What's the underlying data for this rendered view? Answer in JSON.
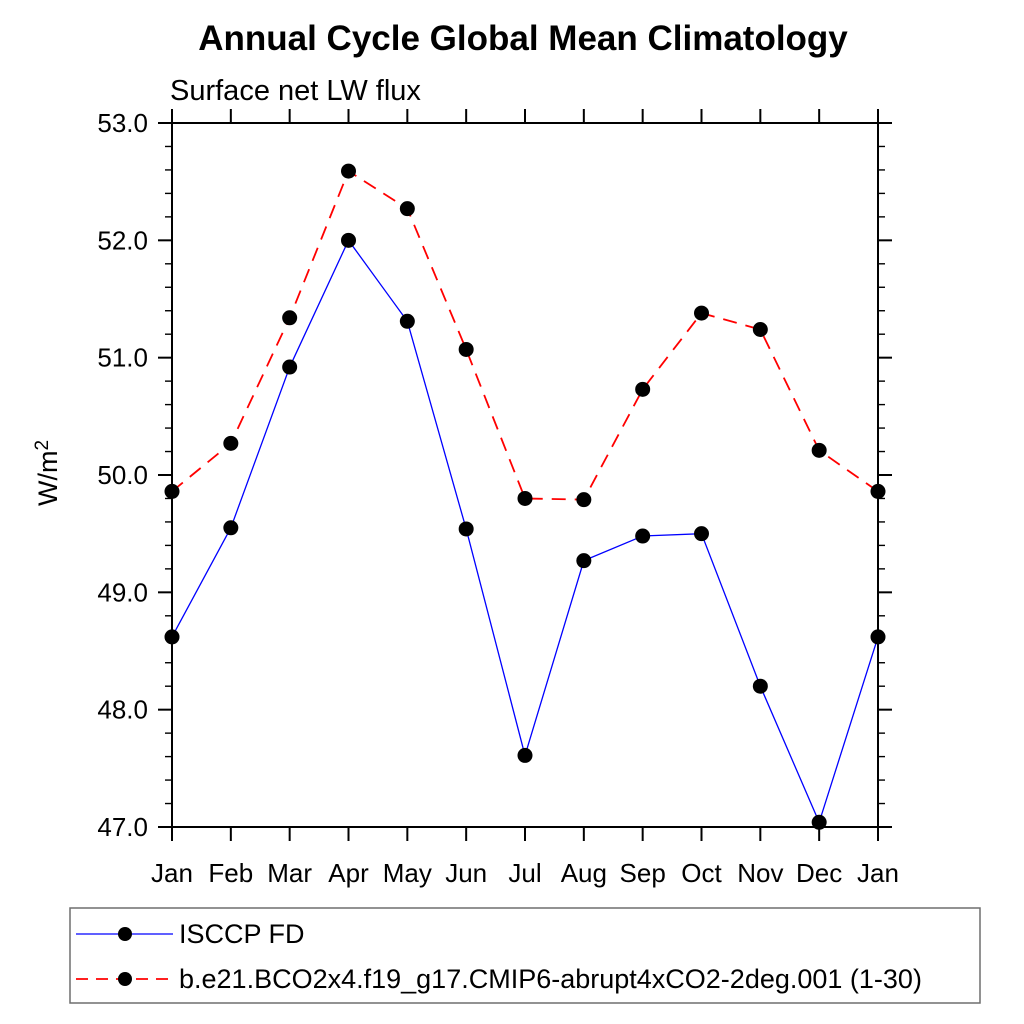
{
  "window": {
    "background": "#ffffff"
  },
  "title": "Annual Cycle Global Mean Climatology",
  "subtitle": "Surface net LW flux",
  "ylabel": {
    "base": "W/m",
    "sup": "2"
  },
  "axes": {
    "ytick_labels": [
      "53.0",
      "52.0",
      "51.0",
      "50.0",
      "49.0",
      "48.0",
      "47.0"
    ],
    "xtick_labels": [
      "Jan",
      "Feb",
      "Mar",
      "Apr",
      "May",
      "Jun",
      "Jul",
      "Aug",
      "Sep",
      "Oct",
      "Nov",
      "Dec",
      "Jan"
    ]
  },
  "colors": {
    "obs_line": "#0000ff",
    "model_line": "#ff0000",
    "marker": "#000000",
    "frame": "#000000",
    "legend_border": "#6e6e6e"
  },
  "chart_data": {
    "type": "line",
    "title": "Annual Cycle Global Mean Climatology",
    "subtitle": "Surface net LW flux",
    "ylabel": "W/m2",
    "xlabel": "",
    "categories": [
      "Jan",
      "Feb",
      "Mar",
      "Apr",
      "May",
      "Jun",
      "Jul",
      "Aug",
      "Sep",
      "Oct",
      "Nov",
      "Dec",
      "Jan"
    ],
    "ylim": [
      47.0,
      53.0
    ],
    "ytick_major_step": 1.0,
    "ytick_minor_step": 0.2,
    "grid": false,
    "legend_position": "bottom",
    "marker": "filled-circle",
    "series": [
      {
        "name": "ISCCP FD",
        "color": "#0000ff",
        "line_style": "solid",
        "values": [
          48.62,
          49.55,
          50.92,
          52.0,
          51.31,
          49.54,
          47.61,
          49.27,
          49.48,
          49.5,
          48.2,
          47.04,
          48.62
        ]
      },
      {
        "name": "b.e21.BCO2x4.f19_g17.CMIP6-abrupt4xCO2-2deg.001 (1-30)",
        "color": "#ff0000",
        "line_style": "dashed",
        "values": [
          49.86,
          50.27,
          51.34,
          52.59,
          52.27,
          51.07,
          49.8,
          49.79,
          50.73,
          51.38,
          51.24,
          50.21,
          49.86
        ]
      }
    ]
  }
}
